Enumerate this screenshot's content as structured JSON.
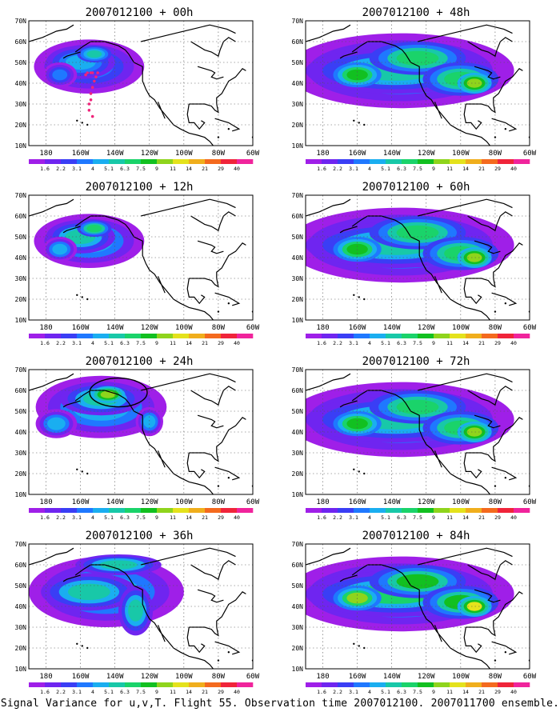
{
  "colorbar": {
    "labels": [
      "1.6",
      "2.2",
      "3.1",
      "4",
      "5.1",
      "6.3",
      "7.5",
      "9",
      "11",
      "14",
      "21",
      "29",
      "40"
    ],
    "colors": [
      "#9f1fe8",
      "#6f25f0",
      "#3a3ef5",
      "#1f78ff",
      "#1aaef0",
      "#18c8a8",
      "#1ad36a",
      "#12c020",
      "#8fd41c",
      "#e4e21c",
      "#f0ae1c",
      "#f46a1e",
      "#f0243a",
      "#f0249c"
    ]
  },
  "map": {
    "lat_labels": [
      "70N",
      "60N",
      "50N",
      "40N",
      "30N",
      "20N",
      "10N"
    ],
    "lon_labels": [
      "180",
      "160W",
      "140W",
      "120W",
      "100W",
      "80W",
      "60W"
    ]
  },
  "footer": "Signal Variance for u,v,T. Flight 55. Observation time 2007012100. 2007011700 ensemble.",
  "chart_data": [
    {
      "type": "heatmap",
      "title": "2007012100 + 00h",
      "grid": true,
      "field": "signal variance",
      "intensity": 0.28,
      "coverage": "gulf-of-alaska",
      "flight_track": true,
      "circle": false,
      "xlabel": "",
      "ylabel": ""
    },
    {
      "type": "heatmap",
      "title": "2007012100 + 48h",
      "grid": true,
      "field": "signal variance",
      "intensity": 0.42,
      "coverage": "north-pacific-to-conus",
      "flight_track": false,
      "circle": false,
      "xlabel": "",
      "ylabel": ""
    },
    {
      "type": "heatmap",
      "title": "2007012100 + 12h",
      "grid": true,
      "field": "signal variance",
      "intensity": 0.38,
      "coverage": "gulf-of-alaska",
      "flight_track": false,
      "circle": false,
      "xlabel": "",
      "ylabel": ""
    },
    {
      "type": "heatmap",
      "title": "2007012100 + 60h",
      "grid": true,
      "field": "signal variance",
      "intensity": 0.55,
      "coverage": "north-pacific-to-conus",
      "flight_track": false,
      "circle": false,
      "xlabel": "",
      "ylabel": ""
    },
    {
      "type": "heatmap",
      "title": "2007012100 + 24h",
      "grid": true,
      "field": "signal variance",
      "intensity": 0.45,
      "coverage": "alaska-western-canada",
      "flight_track": false,
      "circle": true,
      "xlabel": "",
      "ylabel": ""
    },
    {
      "type": "heatmap",
      "title": "2007012100 + 72h",
      "grid": true,
      "field": "signal variance",
      "intensity": 0.62,
      "coverage": "north-pacific-to-conus",
      "flight_track": false,
      "circle": false,
      "xlabel": "",
      "ylabel": ""
    },
    {
      "type": "heatmap",
      "title": "2007012100 + 36h",
      "grid": true,
      "field": "signal variance",
      "intensity": 0.45,
      "coverage": "north-pacific-west",
      "flight_track": false,
      "circle": false,
      "xlabel": "",
      "ylabel": ""
    },
    {
      "type": "heatmap",
      "title": "2007012100 + 84h",
      "grid": true,
      "field": "signal variance",
      "intensity": 0.72,
      "coverage": "north-pacific-to-conus",
      "flight_track": false,
      "circle": false,
      "xlabel": "",
      "ylabel": ""
    }
  ]
}
